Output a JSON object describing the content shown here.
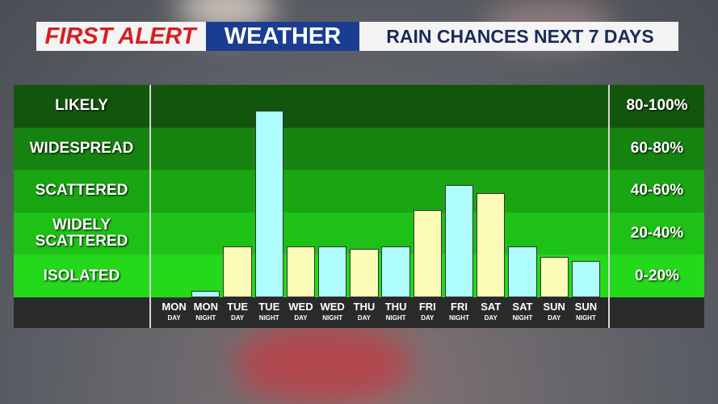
{
  "chart_data": {
    "type": "bar",
    "brand": "FIRST ALERT",
    "program": "WEATHER",
    "title": "RAIN CHANCES NEXT 7 DAYS",
    "categories": [
      "MON",
      "MON",
      "TUE",
      "TUE",
      "WED",
      "WED",
      "THU",
      "THU",
      "FRI",
      "FRI",
      "SAT",
      "SAT",
      "SUN",
      "SUN"
    ],
    "subcategories": [
      "DAY",
      "NIGHT",
      "DAY",
      "NIGHT",
      "DAY",
      "NIGHT",
      "DAY",
      "NIGHT",
      "DAY",
      "NIGHT",
      "DAY",
      "NIGHT",
      "DAY",
      "NIGHT"
    ],
    "values": [
      0,
      3,
      24,
      88,
      24,
      24,
      23,
      24,
      41,
      53,
      49,
      24,
      19,
      17
    ],
    "colors": [
      "#fdfbb8",
      "#aefcfc",
      "#fdfbb8",
      "#aefcfc",
      "#fdfbb8",
      "#aefcfc",
      "#fdfbb8",
      "#aefcfc",
      "#fdfbb8",
      "#aefcfc",
      "#fdfbb8",
      "#aefcfc",
      "#fdfbb8",
      "#aefcfc"
    ],
    "ylim": [
      0,
      100
    ],
    "yticks": [
      0,
      20,
      40,
      60,
      80,
      100
    ],
    "band_labels": [
      "ISOLATED",
      "WIDELY SCATTERED",
      "SCATTERED",
      "WIDESPREAD",
      "LIKELY"
    ],
    "band_ranges": [
      "0-20%",
      "20-40%",
      "40-60%",
      "60-80%",
      "80-100%"
    ],
    "band_colors": [
      "#23d91a",
      "#1ec116",
      "#1aa512",
      "#16820f",
      "#12560d"
    ]
  }
}
